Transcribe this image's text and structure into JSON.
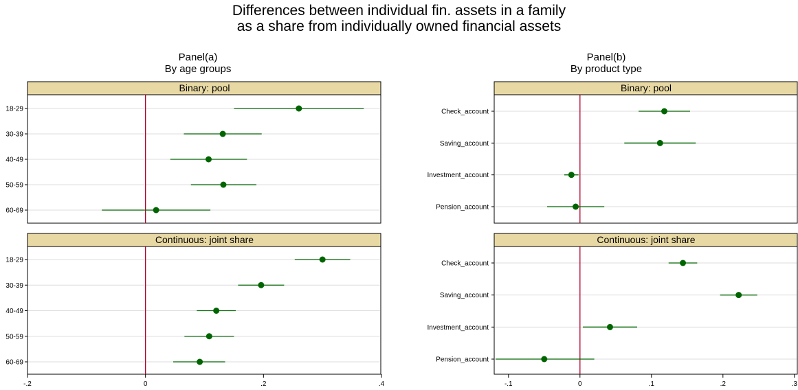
{
  "title_lines": [
    "Differences between individual fin. assets in a family",
    "as a share from individually owned financial assets"
  ],
  "colors": {
    "marker": "#006400",
    "zero_line": "#b0002a",
    "strip": "#e8d9a4",
    "grid": "#dcdcdc"
  },
  "chart_data": [
    {
      "type": "scatter",
      "title": "Panel(a)",
      "subtitle": "By age groups",
      "xlim": [
        -0.2,
        0.4
      ],
      "xticks": [
        -0.2,
        0,
        0.2,
        0.4
      ],
      "xtick_labels": [
        "-.2",
        "0",
        ".2",
        ".4"
      ],
      "reference_line": 0,
      "grid": true,
      "categories": [
        "18-29",
        "30-39",
        "40-49",
        "50-59",
        "60-69"
      ],
      "series": [
        {
          "name": "Binary: pool",
          "values": [
            0.26,
            0.131,
            0.107,
            0.132,
            0.018
          ],
          "ci_low": [
            0.15,
            0.065,
            0.042,
            0.077,
            -0.074
          ],
          "ci_high": [
            0.37,
            0.197,
            0.172,
            0.188,
            0.11
          ]
        },
        {
          "name": "Continuous: joint share",
          "values": [
            0.3,
            0.196,
            0.12,
            0.108,
            0.092
          ],
          "ci_low": [
            0.253,
            0.157,
            0.087,
            0.066,
            0.047
          ],
          "ci_high": [
            0.347,
            0.235,
            0.153,
            0.15,
            0.135
          ]
        }
      ]
    },
    {
      "type": "scatter",
      "title": "Panel(b)",
      "subtitle": "By product type",
      "xlim": [
        -0.12,
        0.305
      ],
      "xticks": [
        -0.1,
        0,
        0.1,
        0.2,
        0.3
      ],
      "xtick_labels": [
        "-.1",
        "0",
        ".1",
        ".2",
        ".3"
      ],
      "reference_line": 0,
      "grid": true,
      "categories": [
        "Check_account",
        "Saving_account",
        "Investment_account",
        "Pension_account"
      ],
      "series": [
        {
          "name": "Binary: pool",
          "values": [
            0.118,
            0.112,
            -0.012,
            -0.006
          ],
          "ci_low": [
            0.082,
            0.062,
            -0.022,
            -0.046
          ],
          "ci_high": [
            0.154,
            0.162,
            -0.002,
            0.034
          ]
        },
        {
          "name": "Continuous: joint share",
          "values": [
            0.144,
            0.222,
            0.042,
            -0.05
          ],
          "ci_low": [
            0.124,
            0.196,
            0.004,
            -0.118
          ],
          "ci_high": [
            0.164,
            0.248,
            0.08,
            0.02
          ]
        }
      ]
    }
  ]
}
